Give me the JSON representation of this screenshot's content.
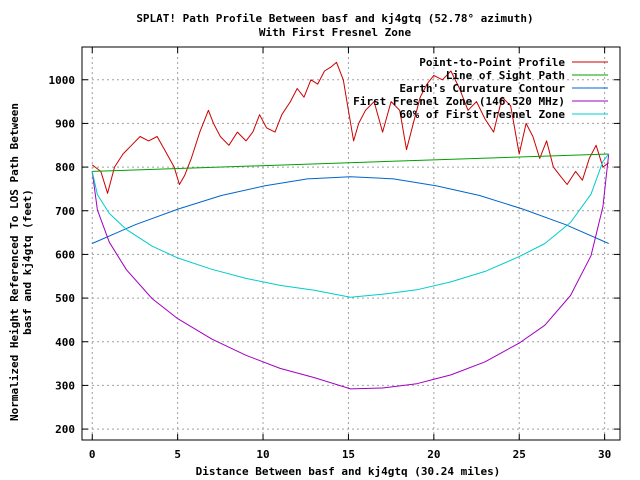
{
  "chart_data": {
    "type": "line",
    "title": "SPLAT! Path Profile Between basf and kj4gtq (52.78° azimuth)",
    "subtitle": "With First Fresnel Zone",
    "xlabel": "Distance Between basf and kj4gtq (30.24 miles)",
    "ylabel_line1": "Normalized Height Referenced To LOS Path Between",
    "ylabel_line2": "basf and kj4gtq (feet)",
    "xlim": [
      -0.6,
      30.9
    ],
    "ylim": [
      175,
      1075
    ],
    "xticks": [
      "0",
      "5",
      "10",
      "15",
      "20",
      "25",
      "30"
    ],
    "yticks": [
      "200",
      "300",
      "400",
      "500",
      "600",
      "700",
      "800",
      "900",
      "1000"
    ],
    "grid": true,
    "legend_position": "top-right",
    "colors": {
      "profile": "#cc0000",
      "los": "#00a000",
      "curvature": "#0066cc",
      "fresnel": "#a000c0",
      "fresnel60": "#00cccc"
    },
    "series": [
      {
        "name": "Point-to-Point Profile",
        "x": [
          0,
          0.5,
          0.9,
          1.3,
          1.8,
          2.3,
          2.8,
          3.3,
          3.8,
          4.3,
          4.8,
          5.1,
          5.4,
          5.8,
          6.3,
          6.8,
          7.1,
          7.5,
          8,
          8.5,
          9,
          9.4,
          9.8,
          10.2,
          10.7,
          11.1,
          11.6,
          12,
          12.4,
          12.8,
          13.2,
          13.6,
          14,
          14.3,
          14.7,
          15,
          15.3,
          15.6,
          16,
          16.5,
          17,
          17.5,
          18,
          18.4,
          18.8,
          19.2,
          19.6,
          20,
          20.5,
          21,
          21.5,
          22,
          22.5,
          23,
          23.5,
          24,
          24.5,
          25,
          25.4,
          25.8,
          26.2,
          26.6,
          27,
          27.4,
          27.8,
          28.3,
          28.7,
          29.1,
          29.5,
          29.9,
          30.24
        ],
        "values": [
          805,
          790,
          740,
          800,
          830,
          850,
          870,
          860,
          870,
          835,
          800,
          760,
          780,
          820,
          880,
          930,
          900,
          870,
          850,
          880,
          860,
          880,
          920,
          890,
          880,
          920,
          950,
          980,
          960,
          1000,
          990,
          1020,
          1030,
          1040,
          1000,
          930,
          860,
          900,
          930,
          950,
          880,
          950,
          930,
          840,
          900,
          960,
          990,
          1010,
          1000,
          1020,
          980,
          930,
          950,
          910,
          880,
          960,
          940,
          830,
          900,
          870,
          820,
          860,
          800,
          780,
          760,
          790,
          770,
          820,
          850,
          800,
          810
        ]
      },
      {
        "name": "Line of Sight Path",
        "x": [
          0,
          30.24
        ],
        "values": [
          790,
          830
        ]
      },
      {
        "name": "Earth's Curvature Contour",
        "x": [
          0,
          2.52,
          5.04,
          7.56,
          10.08,
          12.6,
          15.12,
          17.64,
          20.16,
          22.68,
          25.2,
          27.72,
          30.24
        ],
        "values": [
          625,
          668,
          704,
          735,
          757,
          773,
          778,
          773,
          757,
          735,
          704,
          668,
          625
        ]
      },
      {
        "name": "First Fresnel Zone (146.520 MHz)",
        "x": [
          0,
          0.3,
          1,
          2,
          3.5,
          5,
          7,
          9,
          11,
          13,
          15.12,
          17,
          19,
          21,
          23,
          25,
          26.5,
          28,
          29.2,
          29.9,
          30.24
        ],
        "values": [
          790,
          702,
          628,
          565,
          499,
          453,
          406,
          369,
          339,
          318,
          292,
          294,
          304,
          324,
          354,
          397,
          438,
          506,
          597,
          709,
          830
        ]
      },
      {
        "name": "60% of First Fresnel Zone",
        "x": [
          0,
          0.3,
          1,
          2,
          3.5,
          5,
          7,
          9,
          11,
          13,
          15.12,
          17,
          19,
          21,
          23,
          25,
          26.5,
          28,
          29.2,
          29.9,
          30.24
        ],
        "values": [
          790,
          737,
          694,
          657,
          619,
          592,
          566,
          545,
          529,
          518,
          502,
          509,
          519,
          537,
          561,
          595,
          625,
          673,
          738,
          813,
          830
        ]
      }
    ]
  }
}
